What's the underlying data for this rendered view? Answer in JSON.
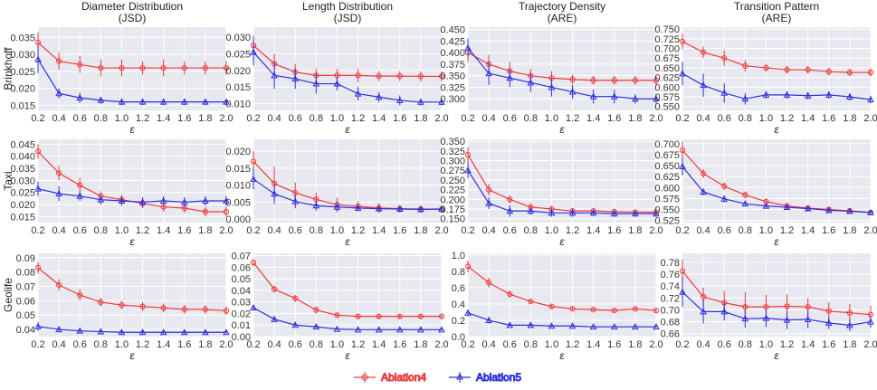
{
  "colors": {
    "Ablation4": "#ee3b3b",
    "Ablation5": "#2f2fe0",
    "plot_background": "#e8e8f0",
    "grid": "#ffffff"
  },
  "legend": {
    "placement": "bottom-center",
    "entries": [
      "Ablation4",
      "Ablation5"
    ]
  },
  "chart_data": {
    "type": "line",
    "grid": true,
    "x": [
      0.2,
      0.4,
      0.6,
      0.8,
      1.0,
      1.2,
      1.4,
      1.6,
      1.8,
      2.0
    ],
    "x_tick_labels": [
      "0.2",
      "0.4",
      "0.6",
      "0.8",
      "1.0",
      "1.2",
      "1.4",
      "1.6",
      "1.8",
      "2.0"
    ],
    "xlabel": "ε",
    "column_titles": [
      [
        "Diameter Distribution",
        "(JSD)"
      ],
      [
        "Length Distribution",
        "(JSD)"
      ],
      [
        "Trajectory Density",
        "(ARE)"
      ],
      [
        "Transition Pattern",
        "(ARE)"
      ]
    ],
    "row_labels": [
      "Brinkhoff",
      "Taxi",
      "Geolife"
    ],
    "panels": [
      {
        "row": 0,
        "col": 0,
        "ylim": [
          0.0135,
          0.038
        ],
        "yticks": [
          "0.015",
          "0.020",
          "0.025",
          "0.030",
          "0.035"
        ],
        "series": [
          {
            "name": "Ablation4",
            "values": [
              0.0335,
              0.028,
              0.027,
              0.026,
              0.026,
              0.026,
              0.026,
              0.026,
              0.026,
              0.026
            ],
            "err": [
              0.003,
              0.0025,
              0.0025,
              0.0025,
              0.0025,
              0.002,
              0.0025,
              0.002,
              0.002,
              0.002
            ]
          },
          {
            "name": "Ablation5",
            "values": [
              0.0285,
              0.0185,
              0.0172,
              0.0165,
              0.016,
              0.016,
              0.016,
              0.016,
              0.016,
              0.016
            ],
            "err": [
              0.004,
              0.0015,
              0.0015,
              0.001,
              0.001,
              0.001,
              0.001,
              0.001,
              0.001,
              0.001
            ]
          }
        ]
      },
      {
        "row": 0,
        "col": 1,
        "ylim": [
          0.008,
          0.033
        ],
        "yticks": [
          "0.010",
          "0.015",
          "0.020",
          "0.025",
          "0.030"
        ],
        "series": [
          {
            "name": "Ablation4",
            "values": [
              0.0275,
              0.022,
              0.0195,
              0.0185,
              0.0185,
              0.0185,
              0.0183,
              0.0183,
              0.0182,
              0.0182
            ],
            "err": [
              0.003,
              0.003,
              0.0025,
              0.002,
              0.002,
              0.002,
              0.0015,
              0.0015,
              0.0015,
              0.0015
            ]
          },
          {
            "name": "Ablation5",
            "values": [
              0.0255,
              0.0185,
              0.0175,
              0.016,
              0.016,
              0.013,
              0.012,
              0.011,
              0.0105,
              0.0105
            ],
            "err": [
              0.004,
              0.004,
              0.003,
              0.003,
              0.002,
              0.002,
              0.0015,
              0.0015,
              0.001,
              0.001
            ]
          }
        ]
      },
      {
        "row": 0,
        "col": 2,
        "ylim": [
          0.275,
          0.455
        ],
        "yticks": [
          "0.300",
          "0.325",
          "0.350",
          "0.375",
          "0.400",
          "0.425",
          "0.450"
        ],
        "series": [
          {
            "name": "Ablation4",
            "values": [
              0.4,
              0.375,
              0.36,
              0.35,
              0.345,
              0.342,
              0.34,
              0.34,
              0.34,
              0.34
            ],
            "err": [
              0.02,
              0.02,
              0.02,
              0.015,
              0.015,
              0.01,
              0.01,
              0.01,
              0.01,
              0.01
            ]
          },
          {
            "name": "Ablation5",
            "values": [
              0.41,
              0.355,
              0.345,
              0.335,
              0.325,
              0.315,
              0.305,
              0.305,
              0.3,
              0.3
            ],
            "err": [
              0.02,
              0.025,
              0.02,
              0.02,
              0.02,
              0.015,
              0.015,
              0.015,
              0.01,
              0.01
            ]
          }
        ]
      },
      {
        "row": 0,
        "col": 3,
        "ylim": [
          0.54,
          0.755
        ],
        "yticks": [
          "0.550",
          "0.575",
          "0.600",
          "0.625",
          "0.650",
          "0.675",
          "0.700",
          "0.725",
          "0.750"
        ],
        "series": [
          {
            "name": "Ablation4",
            "values": [
              0.718,
              0.69,
              0.675,
              0.655,
              0.65,
              0.645,
              0.645,
              0.64,
              0.638,
              0.638
            ],
            "err": [
              0.02,
              0.015,
              0.02,
              0.015,
              0.01,
              0.01,
              0.01,
              0.01,
              0.01,
              0.01
            ]
          },
          {
            "name": "Ablation5",
            "values": [
              0.635,
              0.605,
              0.585,
              0.57,
              0.58,
              0.58,
              0.578,
              0.58,
              0.575,
              0.568
            ],
            "err": [
              0.03,
              0.03,
              0.025,
              0.015,
              0.01,
              0.01,
              0.01,
              0.01,
              0.01,
              0.01
            ]
          }
        ]
      },
      {
        "row": 1,
        "col": 0,
        "ylim": [
          0.0125,
          0.047
        ],
        "yticks": [
          "0.015",
          "0.020",
          "0.025",
          "0.030",
          "0.035",
          "0.040",
          "0.045"
        ],
        "series": [
          {
            "name": "Ablation4",
            "values": [
              0.042,
              0.033,
              0.028,
              0.0235,
              0.022,
              0.0205,
              0.019,
              0.0185,
              0.017,
              0.017
            ],
            "err": [
              0.003,
              0.003,
              0.003,
              0.002,
              0.002,
              0.002,
              0.002,
              0.002,
              0.002,
              0.002
            ]
          },
          {
            "name": "Ablation5",
            "values": [
              0.0265,
              0.0245,
              0.0235,
              0.022,
              0.0215,
              0.021,
              0.0215,
              0.021,
              0.0215,
              0.0215
            ],
            "err": [
              0.003,
              0.003,
              0.002,
              0.002,
              0.002,
              0.002,
              0.002,
              0.002,
              0.002,
              0.002
            ]
          }
        ]
      },
      {
        "row": 1,
        "col": 1,
        "ylim": [
          -0.001,
          0.0235
        ],
        "yticks": [
          "0.000",
          "0.005",
          "0.010",
          "0.015",
          "0.020"
        ],
        "series": [
          {
            "name": "Ablation4",
            "values": [
              0.017,
              0.0105,
              0.0078,
              0.0058,
              0.0043,
              0.0038,
              0.0033,
              0.0031,
              0.003,
              0.0029
            ],
            "err": [
              0.003,
              0.005,
              0.003,
              0.002,
              0.002,
              0.0015,
              0.0015,
              0.001,
              0.001,
              0.001
            ]
          },
          {
            "name": "Ablation5",
            "values": [
              0.0118,
              0.0075,
              0.0052,
              0.004,
              0.0036,
              0.0033,
              0.0031,
              0.003,
              0.0029,
              0.003
            ],
            "err": [
              0.003,
              0.003,
              0.002,
              0.0015,
              0.0015,
              0.001,
              0.001,
              0.001,
              0.001,
              0.001
            ]
          }
        ]
      },
      {
        "row": 1,
        "col": 2,
        "ylim": [
          0.14,
          0.355
        ],
        "yticks": [
          "0.150",
          "0.175",
          "0.200",
          "0.225",
          "0.250",
          "0.275",
          "0.300",
          "0.325",
          "0.350"
        ],
        "series": [
          {
            "name": "Ablation4",
            "values": [
              0.315,
              0.225,
              0.2,
              0.18,
              0.175,
              0.17,
              0.17,
              0.168,
              0.167,
              0.167
            ],
            "err": [
              0.02,
              0.015,
              0.01,
              0.01,
              0.008,
              0.008,
              0.008,
              0.008,
              0.007,
              0.007
            ]
          },
          {
            "name": "Ablation5",
            "values": [
              0.275,
              0.19,
              0.17,
              0.17,
              0.165,
              0.165,
              0.165,
              0.163,
              0.163,
              0.163
            ],
            "err": [
              0.02,
              0.015,
              0.015,
              0.01,
              0.01,
              0.01,
              0.008,
              0.008,
              0.008,
              0.008
            ]
          }
        ]
      },
      {
        "row": 1,
        "col": 3,
        "ylim": [
          0.52,
          0.71
        ],
        "yticks": [
          "0.525",
          "0.550",
          "0.575",
          "0.600",
          "0.625",
          "0.650",
          "0.675",
          "0.700"
        ],
        "series": [
          {
            "name": "Ablation4",
            "values": [
              0.685,
              0.632,
              0.603,
              0.583,
              0.568,
              0.558,
              0.553,
              0.55,
              0.547,
              0.543
            ],
            "err": [
              0.02,
              0.01,
              0.008,
              0.008,
              0.007,
              0.007,
              0.006,
              0.006,
              0.006,
              0.006
            ]
          },
          {
            "name": "Ablation5",
            "values": [
              0.648,
              0.59,
              0.574,
              0.563,
              0.558,
              0.555,
              0.552,
              0.548,
              0.546,
              0.543
            ],
            "err": [
              0.02,
              0.008,
              0.008,
              0.006,
              0.006,
              0.006,
              0.006,
              0.005,
              0.005,
              0.005
            ]
          }
        ]
      },
      {
        "row": 2,
        "col": 0,
        "ylim": [
          0.035,
          0.093
        ],
        "yticks": [
          "0.04",
          "0.05",
          "0.06",
          "0.07",
          "0.08",
          "0.09"
        ],
        "series": [
          {
            "name": "Ablation4",
            "values": [
              0.083,
              0.071,
              0.064,
              0.059,
              0.057,
              0.056,
              0.055,
              0.054,
              0.054,
              0.053
            ],
            "err": [
              0.004,
              0.004,
              0.004,
              0.003,
              0.003,
              0.003,
              0.003,
              0.003,
              0.003,
              0.003
            ]
          },
          {
            "name": "Ablation5",
            "values": [
              0.042,
              0.04,
              0.039,
              0.0385,
              0.038,
              0.038,
              0.038,
              0.038,
              0.038,
              0.038
            ],
            "err": [
              0.003,
              0.002,
              0.002,
              0.002,
              0.0015,
              0.0015,
              0.0015,
              0.0015,
              0.0015,
              0.0015
            ]
          }
        ]
      },
      {
        "row": 2,
        "col": 1,
        "ylim": [
          0.0,
          0.072
        ],
        "yticks": [
          "0.00",
          "0.01",
          "0.02",
          "0.03",
          "0.04",
          "0.05",
          "0.06",
          "0.07"
        ],
        "series": [
          {
            "name": "Ablation4",
            "values": [
              0.064,
              0.041,
              0.033,
              0.023,
              0.0185,
              0.0175,
              0.0175,
              0.0175,
              0.0175,
              0.0175
            ],
            "err": [
              0.003,
              0.003,
              0.003,
              0.003,
              0.002,
              0.002,
              0.002,
              0.002,
              0.002,
              0.002
            ]
          },
          {
            "name": "Ablation5",
            "values": [
              0.025,
              0.015,
              0.01,
              0.0085,
              0.0065,
              0.006,
              0.006,
              0.006,
              0.006,
              0.006
            ],
            "err": [
              0.002,
              0.002,
              0.0015,
              0.0015,
              0.001,
              0.001,
              0.001,
              0.001,
              0.001,
              0.001
            ]
          }
        ]
      },
      {
        "row": 2,
        "col": 2,
        "ylim": [
          0.0,
          1.02
        ],
        "yticks": [
          "0.0",
          "0.2",
          "0.4",
          "0.6",
          "0.8",
          "1.0"
        ],
        "series": [
          {
            "name": "Ablation4",
            "values": [
              0.86,
              0.66,
              0.52,
              0.43,
              0.37,
              0.34,
              0.33,
              0.32,
              0.34,
              0.32
            ],
            "err": [
              0.07,
              0.06,
              0.04,
              0.03,
              0.02,
              0.02,
              0.02,
              0.02,
              0.02,
              0.02
            ]
          },
          {
            "name": "Ablation5",
            "values": [
              0.29,
              0.2,
              0.14,
              0.14,
              0.13,
              0.13,
              0.12,
              0.12,
              0.12,
              0.12
            ],
            "err": [
              0.04,
              0.04,
              0.02,
              0.02,
              0.015,
              0.015,
              0.015,
              0.015,
              0.015,
              0.015
            ]
          }
        ]
      },
      {
        "row": 2,
        "col": 3,
        "ylim": [
          0.655,
          0.795
        ],
        "yticks": [
          "0.66",
          "0.68",
          "0.70",
          "0.72",
          "0.74",
          "0.76",
          "0.78"
        ],
        "series": [
          {
            "name": "Ablation4",
            "values": [
              0.765,
              0.722,
              0.712,
              0.705,
              0.705,
              0.706,
              0.705,
              0.698,
              0.695,
              0.692
            ],
            "err": [
              0.02,
              0.015,
              0.02,
              0.025,
              0.02,
              0.02,
              0.015,
              0.015,
              0.015,
              0.015
            ]
          },
          {
            "name": "Ablation5",
            "values": [
              0.73,
              0.697,
              0.697,
              0.685,
              0.686,
              0.683,
              0.684,
              0.678,
              0.674,
              0.68
            ],
            "err": [
              0.025,
              0.02,
              0.015,
              0.015,
              0.015,
              0.015,
              0.015,
              0.01,
              0.01,
              0.01
            ]
          }
        ]
      }
    ]
  }
}
